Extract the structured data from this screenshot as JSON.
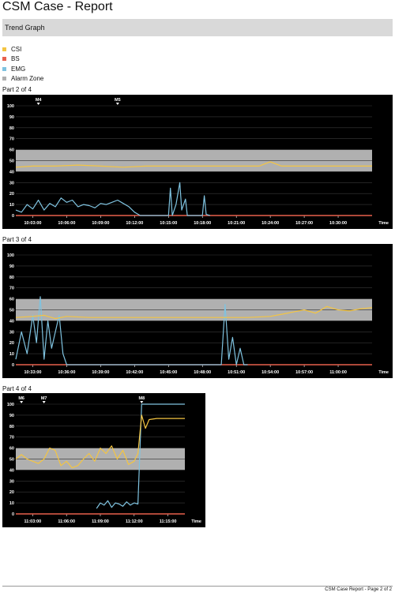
{
  "report": {
    "title": "CSM Case - Report",
    "section": "Trend Graph",
    "footer": "CSM Case Report - Page 2 of 2"
  },
  "legend": [
    {
      "label": "CSI",
      "color": "#f4c542"
    },
    {
      "label": "BS",
      "color": "#e8604c"
    },
    {
      "label": "EMG",
      "color": "#7fc3e0"
    },
    {
      "label": "Alarm Zone",
      "color": "#b0b0b0"
    }
  ],
  "chart_data": [
    {
      "type": "line",
      "part": "Part 2 of 4",
      "x_unit": "Time",
      "ylim": [
        0,
        100
      ],
      "y_ticks": [
        0,
        10,
        20,
        30,
        40,
        50,
        60,
        70,
        80,
        90,
        100
      ],
      "alarm_zone": [
        40,
        60
      ],
      "x_range": [
        "10:01:30",
        "10:33:00"
      ],
      "x_ticks": [
        "10:03:00",
        "10:06:00",
        "10:09:00",
        "10:12:00",
        "10:15:00",
        "10:18:00",
        "10:21:00",
        "10:24:00",
        "10:27:00",
        "10:30:00"
      ],
      "markers": [
        {
          "label": "M4",
          "time": "10:03:30"
        },
        {
          "label": "M5",
          "time": "10:10:30"
        }
      ],
      "series": [
        {
          "name": "CSI",
          "color": "#f4c542",
          "x": [
            "10:01:30",
            "10:03:00",
            "10:05:00",
            "10:07:00",
            "10:09:00",
            "10:11:00",
            "10:13:00",
            "10:15:00",
            "10:17:00",
            "10:19:00",
            "10:21:00",
            "10:23:00",
            "10:24:00",
            "10:25:00",
            "10:27:00",
            "10:29:00",
            "10:31:00",
            "10:33:00"
          ],
          "y": [
            44,
            45,
            45,
            46,
            45,
            44,
            45,
            45,
            45,
            45,
            45,
            45,
            49,
            45,
            45,
            45,
            45,
            45
          ]
        },
        {
          "name": "BS",
          "color": "#e8604c",
          "x": [
            "10:01:30",
            "10:33:00"
          ],
          "y": [
            0,
            0
          ]
        },
        {
          "name": "EMG",
          "color": "#7fc3e0",
          "x": [
            "10:01:30",
            "10:02:00",
            "10:02:30",
            "10:03:00",
            "10:03:30",
            "10:04:00",
            "10:04:30",
            "10:05:00",
            "10:05:30",
            "10:06:00",
            "10:06:30",
            "10:07:00",
            "10:07:30",
            "10:08:00",
            "10:08:30",
            "10:09:00",
            "10:09:30",
            "10:10:00",
            "10:10:30",
            "10:11:00",
            "10:11:30",
            "10:12:00",
            "10:12:30",
            "10:13:00",
            "10:14:00",
            "10:14:30",
            "10:15:00",
            "10:15:10",
            "10:15:20",
            "10:15:40",
            "10:16:00",
            "10:16:10",
            "10:16:30",
            "10:16:40",
            "10:17:00",
            "10:17:30",
            "10:18:00",
            "10:18:10",
            "10:18:20",
            "10:18:40"
          ],
          "y": [
            5,
            3,
            10,
            6,
            14,
            5,
            11,
            8,
            16,
            12,
            14,
            8,
            10,
            9,
            7,
            11,
            10,
            12,
            14,
            11,
            8,
            3,
            0,
            0,
            0,
            0,
            0,
            25,
            0,
            10,
            30,
            5,
            15,
            0,
            0,
            0,
            0,
            18,
            1,
            0
          ]
        }
      ]
    },
    {
      "type": "line",
      "part": "Part 3 of 4",
      "x_unit": "Time",
      "ylim": [
        0,
        100
      ],
      "y_ticks": [
        0,
        10,
        20,
        30,
        40,
        50,
        60,
        70,
        80,
        90,
        100
      ],
      "alarm_zone": [
        40,
        60
      ],
      "x_range": [
        "10:31:30",
        "11:03:00"
      ],
      "x_ticks": [
        "10:33:00",
        "10:36:00",
        "10:39:00",
        "10:42:00",
        "10:45:00",
        "10:48:00",
        "10:51:00",
        "10:54:00",
        "10:57:00",
        "11:00:00"
      ],
      "markers": [],
      "series": [
        {
          "name": "CSI",
          "color": "#f4c542",
          "x": [
            "10:31:30",
            "10:33:00",
            "10:34:00",
            "10:35:00",
            "10:36:00",
            "10:38:00",
            "10:40:00",
            "10:42:00",
            "10:44:00",
            "10:46:00",
            "10:48:00",
            "10:50:00",
            "10:52:00",
            "10:54:00",
            "10:55:00",
            "10:56:00",
            "10:57:00",
            "10:58:00",
            "10:59:00",
            "11:00:00",
            "11:01:00",
            "11:02:00",
            "11:03:00"
          ],
          "y": [
            43,
            44,
            45,
            42,
            44,
            43,
            43,
            43,
            43,
            43,
            43,
            43,
            43,
            44,
            46,
            48,
            50,
            47,
            53,
            50,
            49,
            51,
            52
          ]
        },
        {
          "name": "BS",
          "color": "#e8604c",
          "x": [
            "10:31:30",
            "11:03:00"
          ],
          "y": [
            0,
            0
          ]
        },
        {
          "name": "EMG",
          "color": "#7fc3e0",
          "x": [
            "10:31:30",
            "10:32:00",
            "10:32:30",
            "10:33:00",
            "10:33:20",
            "10:33:40",
            "10:34:00",
            "10:34:20",
            "10:34:40",
            "10:35:00",
            "10:35:20",
            "10:35:40",
            "10:36:00",
            "10:36:20",
            "10:49:40",
            "10:50:00",
            "10:50:20",
            "10:50:40",
            "10:51:00",
            "10:51:20",
            "10:51:40",
            "10:52:00"
          ],
          "y": [
            5,
            30,
            10,
            45,
            20,
            62,
            5,
            40,
            15,
            30,
            45,
            10,
            0,
            0,
            0,
            55,
            5,
            25,
            0,
            15,
            0,
            0
          ]
        }
      ]
    },
    {
      "type": "line",
      "part": "Part 4 of 4",
      "x_unit": "Time",
      "ylim": [
        0,
        100
      ],
      "y_ticks": [
        0,
        10,
        20,
        30,
        40,
        50,
        60,
        70,
        80,
        90,
        100
      ],
      "alarm_zone": [
        40,
        60
      ],
      "x_range": [
        "11:01:30",
        "11:16:30"
      ],
      "x_ticks": [
        "11:03:00",
        "11:06:00",
        "11:09:00",
        "11:12:00",
        "11:15:00"
      ],
      "markers": [
        {
          "label": "M6",
          "time": "11:02:00"
        },
        {
          "label": "M7",
          "time": "11:04:00"
        },
        {
          "label": "M8",
          "time": "11:12:40"
        }
      ],
      "series": [
        {
          "name": "CSI",
          "color": "#f4c542",
          "x": [
            "11:01:30",
            "11:02:00",
            "11:02:30",
            "11:03:00",
            "11:03:30",
            "11:04:00",
            "11:04:30",
            "11:05:00",
            "11:05:30",
            "11:06:00",
            "11:06:30",
            "11:07:00",
            "11:07:30",
            "11:08:00",
            "11:08:30",
            "11:09:00",
            "11:09:30",
            "11:10:00",
            "11:10:30",
            "11:11:00",
            "11:11:30",
            "11:12:00",
            "11:12:20",
            "11:12:40",
            "11:13:00",
            "11:13:20",
            "11:14:00",
            "11:16:30"
          ],
          "y": [
            50,
            54,
            50,
            48,
            46,
            50,
            60,
            58,
            44,
            48,
            42,
            44,
            50,
            55,
            48,
            60,
            55,
            62,
            50,
            58,
            45,
            48,
            55,
            90,
            78,
            86,
            87,
            87
          ]
        },
        {
          "name": "BS",
          "color": "#e8604c",
          "x": [
            "11:01:30",
            "11:16:30"
          ],
          "y": [
            0,
            0
          ]
        },
        {
          "name": "EMG",
          "color": "#7fc3e0",
          "x": [
            "11:08:40",
            "11:09:00",
            "11:09:20",
            "11:09:40",
            "11:10:00",
            "11:10:20",
            "11:10:40",
            "11:11:00",
            "11:11:20",
            "11:11:40",
            "11:12:00",
            "11:12:20",
            "11:12:40",
            "11:13:00",
            "11:16:30"
          ],
          "y": [
            5,
            10,
            8,
            12,
            6,
            10,
            9,
            7,
            11,
            8,
            10,
            9,
            100,
            100,
            100
          ]
        }
      ]
    }
  ]
}
